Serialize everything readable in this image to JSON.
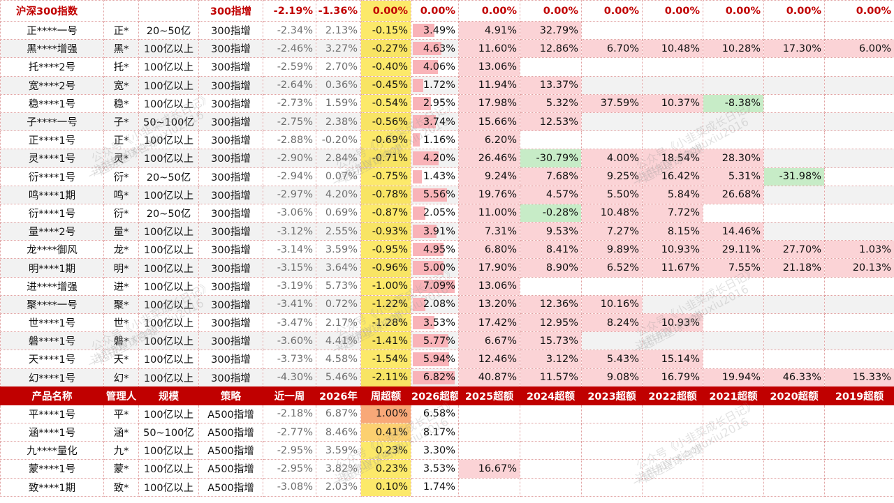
{
  "index_row": {
    "name": "沪深300指数",
    "strategy": "300指增",
    "week": "-2.19%",
    "ytd": "-1.36%",
    "cells": [
      "0.00%",
      "0.00%",
      "0.00%",
      "0.00%",
      "0.00%",
      "0.00%",
      "0.00%",
      "0.00%",
      "0.00%"
    ]
  },
  "rows_300": [
    {
      "name": "正****一号",
      "mgr": "正*",
      "scale": "20~50亿",
      "strat": "300指增",
      "week": "-2.34%",
      "ytd": "2.13%",
      "wex": "-0.15%",
      "y26": "3.49%",
      "y26_frac": 0.51,
      "hist": [
        "4.91%",
        "32.79%",
        "",
        "",
        "",
        "",
        ""
      ]
    },
    {
      "name": "黑****增强",
      "mgr": "黑*",
      "scale": "100亿以上",
      "strat": "300指增",
      "week": "-2.46%",
      "ytd": "3.27%",
      "wex": "-0.27%",
      "y26": "4.63%",
      "y26_frac": 0.68,
      "hist": [
        "11.60%",
        "12.86%",
        "6.70%",
        "10.48%",
        "10.28%",
        "17.30%",
        "6.00%"
      ]
    },
    {
      "name": "托****2号",
      "mgr": "托*",
      "scale": "100亿以上",
      "strat": "300指增",
      "week": "-2.59%",
      "ytd": "2.70%",
      "wex": "-0.40%",
      "y26": "4.06%",
      "y26_frac": 0.6,
      "hist": [
        "13.06%",
        "",
        "",
        "",
        "",
        "",
        ""
      ]
    },
    {
      "name": "宽****2号",
      "mgr": "宽*",
      "scale": "100亿以上",
      "strat": "300指增",
      "week": "-2.64%",
      "ytd": "0.36%",
      "wex": "-0.45%",
      "y26": "1.72%",
      "y26_frac": 0.25,
      "hist": [
        "11.94%",
        "13.37%",
        "",
        "",
        "",
        "",
        ""
      ]
    },
    {
      "name": "稳****1号",
      "mgr": "稳*",
      "scale": "100亿以上",
      "strat": "300指增",
      "week": "-2.73%",
      "ytd": "1.59%",
      "wex": "-0.54%",
      "y26": "2.95%",
      "y26_frac": 0.43,
      "hist": [
        "17.98%",
        "5.32%",
        "37.59%",
        "10.37%",
        "-8.38%",
        "",
        ""
      ]
    },
    {
      "name": "子****一号",
      "mgr": "子*",
      "scale": "50~100亿",
      "strat": "300指增",
      "week": "-2.75%",
      "ytd": "2.38%",
      "wex": "-0.56%",
      "y26": "3.74%",
      "y26_frac": 0.55,
      "hist": [
        "15.66%",
        "12.53%",
        "",
        "",
        "",
        "",
        ""
      ]
    },
    {
      "name": "正****1号",
      "mgr": "正*",
      "scale": "100亿以上",
      "strat": "300指增",
      "week": "-2.88%",
      "ytd": "-0.20%",
      "wex": "-0.69%",
      "y26": "1.16%",
      "y26_frac": 0.17,
      "hist": [
        "6.20%",
        "",
        "",
        "",
        "",
        "",
        ""
      ]
    },
    {
      "name": "灵****1号",
      "mgr": "灵*",
      "scale": "100亿以上",
      "strat": "300指增",
      "week": "-2.90%",
      "ytd": "2.84%",
      "wex": "-0.71%",
      "y26": "4.20%",
      "y26_frac": 0.62,
      "hist": [
        "26.46%",
        "-30.79%",
        "4.00%",
        "18.54%",
        "28.30%",
        "",
        ""
      ]
    },
    {
      "name": "衍****1号",
      "mgr": "衍*",
      "scale": "20~50亿",
      "strat": "300指增",
      "week": "-2.94%",
      "ytd": "0.07%",
      "wex": "-0.75%",
      "y26": "1.43%",
      "y26_frac": 0.21,
      "hist": [
        "9.24%",
        "7.68%",
        "9.25%",
        "16.42%",
        "5.31%",
        "-31.98%",
        ""
      ]
    },
    {
      "name": "鸣****1期",
      "mgr": "鸣*",
      "scale": "100亿以上",
      "strat": "300指增",
      "week": "-2.97%",
      "ytd": "4.20%",
      "wex": "-0.78%",
      "y26": "5.56%",
      "y26_frac": 0.82,
      "hist": [
        "19.76%",
        "4.57%",
        "5.50%",
        "5.84%",
        "26.68%",
        "",
        ""
      ]
    },
    {
      "name": "衍****1号",
      "mgr": "衍*",
      "scale": "20~50亿",
      "strat": "300指增",
      "week": "-3.06%",
      "ytd": "0.69%",
      "wex": "-0.87%",
      "y26": "2.05%",
      "y26_frac": 0.3,
      "hist": [
        "11.00%",
        "-0.28%",
        "10.48%",
        "7.72%",
        "",
        "",
        ""
      ]
    },
    {
      "name": "量****2号",
      "mgr": "量*",
      "scale": "100亿以上",
      "strat": "300指增",
      "week": "-3.12%",
      "ytd": "2.55%",
      "wex": "-0.93%",
      "y26": "3.91%",
      "y26_frac": 0.57,
      "hist": [
        "7.31%",
        "9.53%",
        "7.27%",
        "8.15%",
        "14.46%",
        "",
        ""
      ]
    },
    {
      "name": "龙****御风",
      "mgr": "龙*",
      "scale": "100亿以上",
      "strat": "300指增",
      "week": "-3.14%",
      "ytd": "3.59%",
      "wex": "-0.95%",
      "y26": "4.95%",
      "y26_frac": 0.73,
      "hist": [
        "6.80%",
        "8.41%",
        "9.89%",
        "10.93%",
        "29.11%",
        "27.70%",
        "1.03%"
      ]
    },
    {
      "name": "明****1期",
      "mgr": "明*",
      "scale": "100亿以上",
      "strat": "300指增",
      "week": "-3.15%",
      "ytd": "3.64%",
      "wex": "-0.96%",
      "y26": "5.00%",
      "y26_frac": 0.73,
      "hist": [
        "17.90%",
        "8.90%",
        "6.52%",
        "11.67%",
        "7.55%",
        "21.18%",
        "20.13%"
      ]
    },
    {
      "name": "进****增强",
      "mgr": "进*",
      "scale": "100亿以上",
      "strat": "300指增",
      "week": "-3.19%",
      "ytd": "5.73%",
      "wex": "-1.00%",
      "y26": "7.09%",
      "y26_frac": 1.0,
      "hist": [
        "13.06%",
        "",
        "",
        "",
        "",
        "",
        ""
      ]
    },
    {
      "name": "聚****一号",
      "mgr": "聚*",
      "scale": "100亿以上",
      "strat": "300指增",
      "week": "-3.41%",
      "ytd": "0.72%",
      "wex": "-1.22%",
      "y26": "2.08%",
      "y26_frac": 0.3,
      "hist": [
        "13.20%",
        "12.36%",
        "10.16%",
        "",
        "",
        "",
        ""
      ]
    },
    {
      "name": "世****1号",
      "mgr": "世*",
      "scale": "100亿以上",
      "strat": "300指增",
      "week": "-3.47%",
      "ytd": "2.17%",
      "wex": "-1.28%",
      "y26": "3.53%",
      "y26_frac": 0.52,
      "hist": [
        "17.42%",
        "12.95%",
        "8.24%",
        "10.93%",
        "",
        "",
        ""
      ]
    },
    {
      "name": "磐****1号",
      "mgr": "磐*",
      "scale": "100亿以上",
      "strat": "300指增",
      "week": "-3.60%",
      "ytd": "4.41%",
      "wex": "-1.41%",
      "y26": "5.77%",
      "y26_frac": 0.85,
      "hist": [
        "6.67%",
        "15.73%",
        "",
        "",
        "",
        "",
        ""
      ]
    },
    {
      "name": "天****1号",
      "mgr": "天*",
      "scale": "100亿以上",
      "strat": "300指增",
      "week": "-3.73%",
      "ytd": "4.58%",
      "wex": "-1.54%",
      "y26": "5.94%",
      "y26_frac": 0.87,
      "hist": [
        "12.46%",
        "3.12%",
        "5.43%",
        "15.14%",
        "",
        "",
        ""
      ]
    },
    {
      "name": "幻****1号",
      "mgr": "幻*",
      "scale": "100亿以上",
      "strat": "300指增",
      "week": "-4.30%",
      "ytd": "5.46%",
      "wex": "-2.11%",
      "y26": "6.82%",
      "y26_frac": 1.0,
      "hist": [
        "40.87%",
        "11.57%",
        "9.08%",
        "16.79%",
        "19.94%",
        "46.33%",
        "15.33%"
      ]
    }
  ],
  "header": [
    "产品名称",
    "管理人",
    "规模",
    "策略",
    "近一周",
    "2026年",
    "周超额",
    "2026超额",
    "2025超额",
    "2024超额",
    "2023超额",
    "2022超额",
    "2021超额",
    "2020超额",
    "2019超额"
  ],
  "rows_a500": [
    {
      "name": "平****1号",
      "mgr": "平*",
      "scale": "100亿以上",
      "strat": "A500指增",
      "week": "-2.18%",
      "ytd": "6.87%",
      "wex": "1.00%",
      "wex_class": "yel1",
      "y26": "6.58%",
      "y26_frac": 0.0,
      "hist": [
        "",
        "",
        "",
        "",
        "",
        "",
        ""
      ]
    },
    {
      "name": "涵****1号",
      "mgr": "涵*",
      "scale": "50~100亿",
      "strat": "A500指增",
      "week": "-2.77%",
      "ytd": "8.46%",
      "wex": "0.41%",
      "wex_class": "yel2",
      "y26": "8.17%",
      "y26_frac": 0.0,
      "hist": [
        "",
        "",
        "",
        "",
        "",
        "",
        ""
      ]
    },
    {
      "name": "九****量化",
      "mgr": "九*",
      "scale": "100亿以上",
      "strat": "A500指增",
      "week": "-2.95%",
      "ytd": "3.59%",
      "wex": "0.23%",
      "wex_class": "yel3",
      "y26": "3.30%",
      "y26_frac": 0.0,
      "hist": [
        "",
        "",
        "",
        "",
        "",
        "",
        ""
      ]
    },
    {
      "name": "蒙****1号",
      "mgr": "蒙*",
      "scale": "100亿以上",
      "strat": "A500指增",
      "week": "-2.95%",
      "ytd": "3.82%",
      "wex": "0.23%",
      "wex_class": "yel3",
      "y26": "3.53%",
      "y26_frac": 0.0,
      "hist": [
        "16.67%",
        "",
        "",
        "",
        "",
        "",
        ""
      ]
    },
    {
      "name": "致****1期",
      "mgr": "致*",
      "scale": "100亿以上",
      "strat": "A500指增",
      "week": "-3.08%",
      "ytd": "2.03%",
      "wex": "0.10%",
      "wex_class": "yel3",
      "y26": "1.74%",
      "y26_frac": 0.0,
      "hist": [
        "",
        "",
        "",
        "",
        "",
        "",
        ""
      ]
    }
  ],
  "watermark": [
    "公众号《小韭菜成长日记》",
    "进群加V:xiaojiuxiu2016",
    "一起进星球白嫖"
  ]
}
